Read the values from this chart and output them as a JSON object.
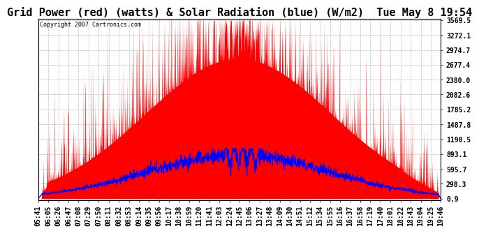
{
  "title": "Grid Power (red) (watts) & Solar Radiation (blue) (W/m2)  Tue May 8 19:54",
  "copyright": "Copyright 2007 Cartronics.com",
  "y_ticks": [
    0.9,
    298.3,
    595.7,
    893.1,
    1190.5,
    1487.8,
    1785.2,
    2082.6,
    2380.0,
    2677.4,
    2974.7,
    3272.1,
    3569.5
  ],
  "x_tick_labels": [
    "05:41",
    "06:05",
    "06:26",
    "06:47",
    "07:08",
    "07:29",
    "07:50",
    "08:11",
    "08:32",
    "08:53",
    "09:14",
    "09:35",
    "09:56",
    "10:17",
    "10:38",
    "10:59",
    "11:20",
    "11:41",
    "12:03",
    "12:24",
    "12:45",
    "13:06",
    "13:27",
    "13:48",
    "14:09",
    "14:30",
    "14:51",
    "15:12",
    "15:34",
    "15:55",
    "16:16",
    "16:37",
    "16:58",
    "17:19",
    "17:40",
    "18:01",
    "18:22",
    "18:43",
    "19:04",
    "19:25",
    "19:46"
  ],
  "plot_bg_color": "#FFFFFF",
  "fig_bg_color": "#FFFFFF",
  "red_color": "#FF0000",
  "blue_color": "#0000FF",
  "grid_color": "#AAAAAA",
  "title_color": "#000000",
  "copyright_color": "#000000",
  "y_min": 0.9,
  "y_max": 3569.5,
  "font_size_title": 11,
  "font_size_ticks": 7,
  "font_size_copyright": 6
}
